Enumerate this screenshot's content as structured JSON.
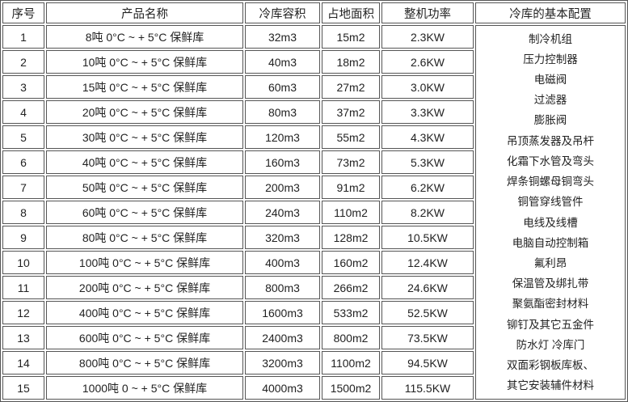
{
  "headers": [
    "序号",
    "产品名称",
    "冷库容积",
    "占地面积",
    "整机功率",
    "冷库的基本配置"
  ],
  "rows": [
    [
      "1",
      "8吨 0°C ~ + 5°C 保鲜库",
      "32m3",
      "15m2",
      "2.3KW"
    ],
    [
      "2",
      "10吨 0°C ~ + 5°C 保鲜库",
      "40m3",
      "18m2",
      "2.6KW"
    ],
    [
      "3",
      "15吨 0°C ~ + 5°C 保鲜库",
      "60m3",
      "27m2",
      "3.0KW"
    ],
    [
      "4",
      "20吨 0°C ~ + 5°C 保鲜库",
      "80m3",
      "37m2",
      "3.3KW"
    ],
    [
      "5",
      "30吨 0°C ~ + 5°C 保鲜库",
      "120m3",
      "55m2",
      "4.3KW"
    ],
    [
      "6",
      "40吨 0°C ~ + 5°C 保鲜库",
      "160m3",
      "73m2",
      "5.3KW"
    ],
    [
      "7",
      "50吨 0°C ~ + 5°C 保鲜库",
      "200m3",
      "91m2",
      "6.2KW"
    ],
    [
      "8",
      "60吨 0°C ~ + 5°C 保鲜库",
      "240m3",
      "110m2",
      "8.2KW"
    ],
    [
      "9",
      "80吨 0°C ~ + 5°C 保鲜库",
      "320m3",
      "128m2",
      "10.5KW"
    ],
    [
      "10",
      "100吨 0°C ~ + 5°C 保鲜库",
      "400m3",
      "160m2",
      "12.4KW"
    ],
    [
      "11",
      "200吨 0°C ~ + 5°C 保鲜库",
      "800m3",
      "266m2",
      "24.6KW"
    ],
    [
      "12",
      "400吨 0°C ~ + 5°C 保鲜库",
      "1600m3",
      "533m2",
      "52.5KW"
    ],
    [
      "13",
      "600吨 0°C ~ + 5°C 保鲜库",
      "2400m3",
      "800m2",
      "73.5KW"
    ],
    [
      "14",
      "800吨 0°C ~ + 5°C 保鲜库",
      "3200m3",
      "1100m2",
      "94.5KW"
    ],
    [
      "15",
      "1000吨 0 ~ + 5°C 保鲜库",
      "4000m3",
      "1500m2",
      "115.5KW"
    ]
  ],
  "config_items": [
    "制冷机组",
    "压力控制器",
    "电磁阀",
    "过滤器",
    "膨胀阀",
    "吊顶蒸发器及吊杆",
    "化霜下水管及弯头",
    "焊条铜螺母铜弯头",
    "铜管穿线管件",
    "电线及线槽",
    "电脑自动控制箱",
    "氟利昂",
    "保温管及绑扎带",
    "聚氨酯密封材料",
    "铆钉及其它五金件",
    "防水灯 冷库门",
    "双面彩钢板库板、",
    "其它安装辅件材料"
  ]
}
